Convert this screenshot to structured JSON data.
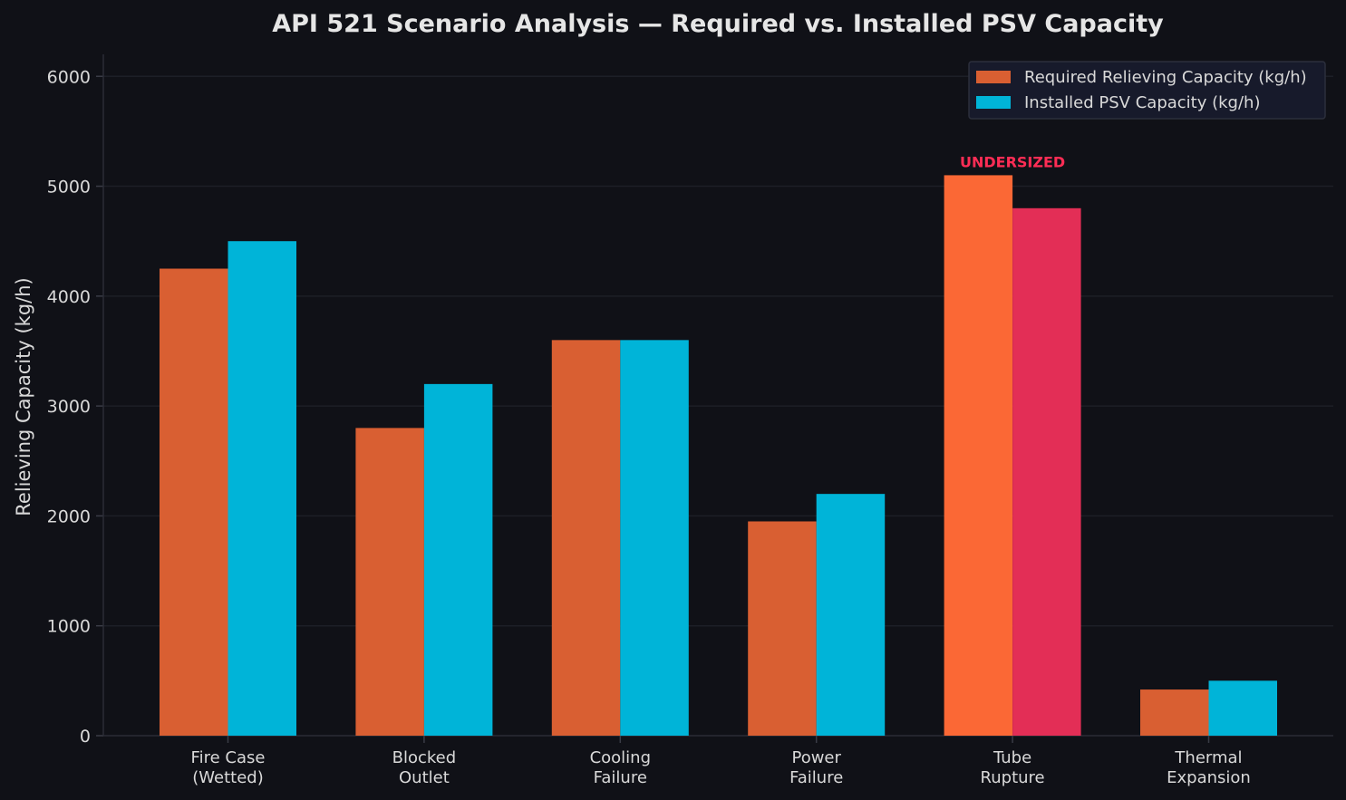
{
  "chart_data": {
    "type": "bar",
    "title": "API 521 Scenario Analysis — Required vs. Installed PSV Capacity",
    "xlabel": "",
    "ylabel": "Relieving Capacity (kg/h)",
    "ylim": [
      0,
      6200
    ],
    "yticks": [
      0,
      1000,
      2000,
      3000,
      4000,
      5000,
      6000
    ],
    "grid": "horizontal",
    "legend_position": "top-right",
    "categories": [
      [
        "Fire Case",
        "(Wetted)"
      ],
      [
        "Blocked",
        "Outlet"
      ],
      [
        "Cooling",
        "Failure"
      ],
      [
        "Power",
        "Failure"
      ],
      [
        "Tube",
        "Rupture"
      ],
      [
        "Thermal",
        "Expansion"
      ]
    ],
    "series": [
      {
        "name": "Required Relieving Capacity (kg/h)",
        "color": "#d95f32",
        "values": [
          4250,
          2800,
          3600,
          1950,
          5100,
          420
        ]
      },
      {
        "name": "Installed PSV Capacity (kg/h)",
        "color": "#00b4d8",
        "values": [
          4500,
          3200,
          3600,
          2200,
          4800,
          500
        ]
      }
    ],
    "highlight": {
      "category_index": 4,
      "required_color": "#fb6835",
      "installed_color": "#e32e56"
    },
    "annotations": [
      {
        "text": "UNDERSIZED",
        "category_index": 4,
        "color": "#ff2d55"
      }
    ]
  }
}
